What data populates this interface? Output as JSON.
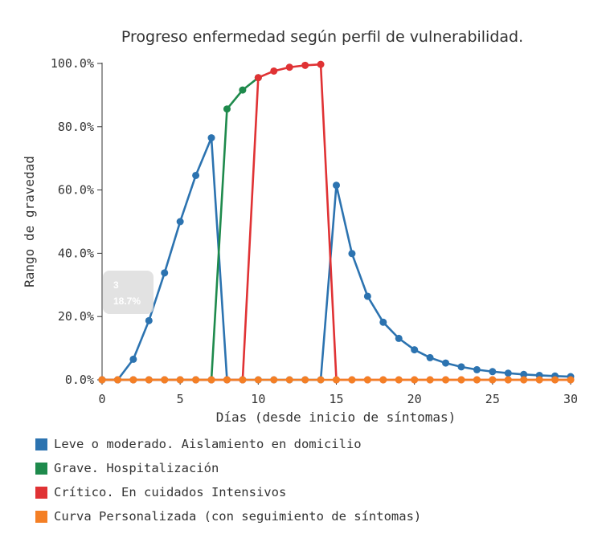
{
  "chart_data": {
    "type": "line",
    "title": "Progreso enfermedad según perfil de vulnerabilidad.",
    "xlabel": "Días (desde inicio de síntomas)",
    "ylabel": "Rango de gravedad",
    "xlim": [
      0,
      30
    ],
    "ylim": [
      0,
      100
    ],
    "x_ticks": [
      "0",
      "5",
      "10",
      "15",
      "20",
      "25",
      "30"
    ],
    "y_ticks": [
      "0.0%",
      "20.0%",
      "40.0%",
      "60.0%",
      "80.0%",
      "100.0%"
    ],
    "legend_position": "bottom-left",
    "series": [
      {
        "name": "Leve o moderado. Aislamiento en domicilio",
        "color": "#2c73b0",
        "x": [
          0,
          1,
          2,
          3,
          4,
          5,
          6,
          7,
          8,
          9,
          10,
          11,
          12,
          13,
          14,
          15,
          16,
          17,
          18,
          19,
          20,
          21,
          22,
          23,
          24,
          25,
          26,
          27,
          28,
          29,
          30
        ],
        "values": [
          0,
          0,
          6.5,
          18.7,
          33.8,
          50,
          64.6,
          76.5,
          0,
          0,
          0,
          0,
          0,
          0,
          0,
          61.5,
          39.9,
          26.4,
          18.2,
          13.1,
          9.5,
          7,
          5.3,
          4.1,
          3.2,
          2.6,
          2.1,
          1.7,
          1.4,
          1.2,
          1
        ]
      },
      {
        "name": "Grave. Hospitalización",
        "color": "#1e8a4c",
        "x": [
          0,
          1,
          2,
          3,
          4,
          5,
          6,
          7,
          8,
          9,
          10
        ],
        "values": [
          0,
          0,
          0,
          0,
          0,
          0,
          0,
          0,
          85.6,
          91.6,
          95.5
        ]
      },
      {
        "name": "Crítico. En cuidados Intensivos",
        "color": "#e03234",
        "x": [
          0,
          1,
          2,
          3,
          4,
          5,
          6,
          7,
          8,
          9,
          10,
          11,
          12,
          13,
          14,
          15,
          16,
          17,
          18,
          19,
          20,
          21,
          22,
          23,
          24,
          25,
          26,
          27,
          28,
          29,
          30
        ],
        "values": [
          0,
          0,
          0,
          0,
          0,
          0,
          0,
          0,
          0,
          0,
          95.5,
          97.6,
          98.8,
          99.4,
          99.7,
          0,
          0,
          0,
          0,
          0,
          0,
          0,
          0,
          0,
          0,
          0,
          0,
          0,
          0,
          0,
          0
        ]
      },
      {
        "name": "Curva Personalizada (con seguimiento de síntomas)",
        "color": "#f47f25",
        "x": [
          0,
          1,
          2,
          3,
          4,
          5,
          6,
          7,
          8,
          9,
          10,
          11,
          12,
          13,
          14,
          15,
          16,
          17,
          18,
          19,
          20,
          21,
          22,
          23,
          24,
          25,
          26,
          27,
          28,
          29,
          30
        ],
        "values": [
          0,
          0,
          0,
          0,
          0,
          0,
          0,
          0,
          0,
          0,
          0,
          0,
          0,
          0,
          0,
          0,
          0,
          0,
          0,
          0,
          0,
          0,
          0,
          0,
          0,
          0,
          0,
          0,
          0,
          0,
          0
        ]
      }
    ],
    "tooltip": {
      "x_value": "3",
      "y_value": "18.7%"
    }
  }
}
